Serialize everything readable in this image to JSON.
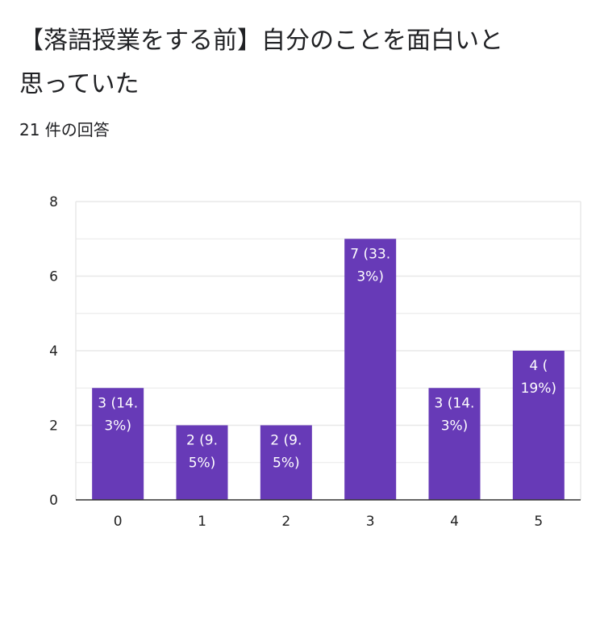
{
  "header": {
    "title": "【落語授業をする前】自分のことを面白いと思っていた",
    "response_count": "21 件の回答"
  },
  "chart_data": {
    "type": "bar",
    "categories": [
      "0",
      "1",
      "2",
      "3",
      "4",
      "5"
    ],
    "values": [
      3,
      2,
      2,
      7,
      3,
      4
    ],
    "data_labels": [
      [
        "3 (14.",
        "3%)"
      ],
      [
        "2 (9.",
        "5%)"
      ],
      [
        "2 (9.",
        "5%)"
      ],
      [
        "7 (33.",
        "3%)"
      ],
      [
        "3 (14.",
        "3%)"
      ],
      [
        "4 (",
        "19%)"
      ]
    ],
    "title": "【落語授業をする前】自分のことを面白いと思っていた",
    "xlabel": "",
    "ylabel": "",
    "ylim": [
      0,
      8
    ],
    "yticks": [
      0,
      2,
      4,
      6,
      8
    ],
    "grid": true,
    "colors": {
      "bar": "#673ab7",
      "grid": "#e8e8e8",
      "axis": "#333333"
    }
  }
}
